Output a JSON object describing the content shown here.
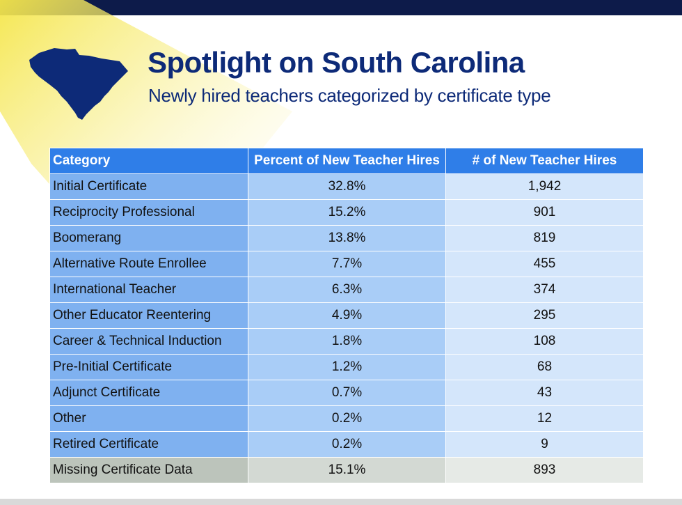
{
  "header": {
    "title": "Spotlight on South Carolina",
    "subtitle": "Newly hired teachers categorized by certificate type"
  },
  "colors": {
    "title": "#0d2a78",
    "top_bar": "#0d1b4a",
    "header_row": "#2f7ee8",
    "category_col": "#7fb1f0",
    "percent_col": "#a9cdf7",
    "count_col": "#d4e6fb",
    "missing_row": "#bcc4bb",
    "spotlight": "#f5e64a"
  },
  "icons": {
    "state": "south-carolina-map-icon"
  },
  "table": {
    "headers": [
      "Category",
      "Percent of New Teacher Hires",
      "# of New Teacher Hires"
    ],
    "rows": [
      [
        "Initial Certificate",
        "32.8%",
        "1,942"
      ],
      [
        "Reciprocity Professional",
        "15.2%",
        "901"
      ],
      [
        "Boomerang",
        "13.8%",
        "819"
      ],
      [
        "Alternative Route Enrollee",
        "7.7%",
        "455"
      ],
      [
        "International Teacher",
        "6.3%",
        "374"
      ],
      [
        "Other Educator Reentering",
        "4.9%",
        "295"
      ],
      [
        "Career & Technical Induction",
        "1.8%",
        "108"
      ],
      [
        "Pre-Initial Certificate",
        "1.2%",
        "68"
      ],
      [
        "Adjunct Certificate",
        "0.7%",
        "43"
      ],
      [
        "Other",
        "0.2%",
        "12"
      ],
      [
        "Retired Certificate",
        "0.2%",
        "9"
      ],
      [
        "Missing Certificate Data",
        "15.1%",
        "893"
      ]
    ]
  }
}
